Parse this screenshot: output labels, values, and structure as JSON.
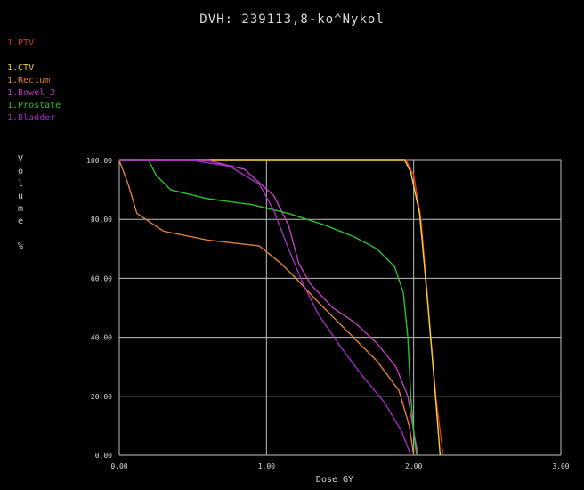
{
  "title": "DVH: 239113,8-ko^Nykol",
  "legend": [
    {
      "label": "1.PTV",
      "color": "#e0302a"
    },
    {
      "label": "",
      "color": "#2060ff"
    },
    {
      "label": "1.CTV",
      "color": "#e8d23a"
    },
    {
      "label": "1.Rectum",
      "color": "#e0803a"
    },
    {
      "label": "1.Bowel_2",
      "color": "#c040c0"
    },
    {
      "label": "1.Prostate",
      "color": "#30c030"
    },
    {
      "label": "1.Bladder",
      "color": "#a030c0"
    }
  ],
  "stats": [
    {
      "label": "",
      "value": ""
    },
    {
      "label": "",
      "value": ""
    },
    {
      "label": "",
      "value": ""
    },
    {
      "label": "",
      "value": ""
    },
    {
      "label": "",
      "value": ""
    },
    {
      "label": "",
      "value": ""
    },
    {
      "label": "",
      "value": ""
    },
    {
      "label": "",
      "value": ""
    }
  ],
  "y_axis_label": "Volume %",
  "chart_data": {
    "type": "line",
    "title": "DVH: 239113,8-ko^Nykol",
    "xlabel": "Dose GY",
    "ylabel": "Volume %",
    "xlim": [
      0,
      3
    ],
    "ylim": [
      0,
      100
    ],
    "x_ticks": [
      "0.00",
      "1.00",
      "2.00",
      "3.00"
    ],
    "y_ticks": [
      "0.00",
      "20.00",
      "40.00",
      "60.00",
      "80.00",
      "100.00"
    ],
    "grid": true,
    "series": [
      {
        "name": "1.PTV",
        "color": "#e0302a",
        "points": [
          [
            0,
            100
          ],
          [
            1.95,
            100
          ],
          [
            2.0,
            95
          ],
          [
            2.05,
            80
          ],
          [
            2.1,
            50
          ],
          [
            2.15,
            20
          ],
          [
            2.2,
            0
          ]
        ]
      },
      {
        "name": "1.CTV",
        "color": "#e8d23a",
        "points": [
          [
            0,
            100
          ],
          [
            1.94,
            100
          ],
          [
            1.98,
            96
          ],
          [
            2.04,
            82
          ],
          [
            2.09,
            55
          ],
          [
            2.14,
            25
          ],
          [
            2.18,
            0
          ]
        ]
      },
      {
        "name": "1.Rectum",
        "color": "#e0803a",
        "points": [
          [
            0,
            100
          ],
          [
            0.06,
            92
          ],
          [
            0.12,
            82
          ],
          [
            0.3,
            76
          ],
          [
            0.6,
            73
          ],
          [
            0.95,
            71
          ],
          [
            1.1,
            65
          ],
          [
            1.2,
            60
          ],
          [
            1.35,
            52
          ],
          [
            1.55,
            42
          ],
          [
            1.75,
            32
          ],
          [
            1.9,
            22
          ],
          [
            1.97,
            10
          ],
          [
            2.0,
            0
          ]
        ]
      },
      {
        "name": "1.Bowel_2",
        "color": "#c040c0",
        "points": [
          [
            0,
            100
          ],
          [
            0.6,
            100
          ],
          [
            0.85,
            97
          ],
          [
            1.05,
            88
          ],
          [
            1.15,
            78
          ],
          [
            1.22,
            65
          ],
          [
            1.3,
            58
          ],
          [
            1.45,
            50
          ],
          [
            1.6,
            45
          ],
          [
            1.75,
            38
          ],
          [
            1.88,
            30
          ],
          [
            1.96,
            20
          ],
          [
            2.0,
            8
          ],
          [
            2.03,
            0
          ]
        ]
      },
      {
        "name": "1.Prostate",
        "color": "#30c030",
        "points": [
          [
            0,
            100
          ],
          [
            0.2,
            100
          ],
          [
            0.25,
            95
          ],
          [
            0.35,
            90
          ],
          [
            0.6,
            87
          ],
          [
            0.9,
            85
          ],
          [
            1.15,
            82
          ],
          [
            1.4,
            78
          ],
          [
            1.6,
            74
          ],
          [
            1.75,
            70
          ],
          [
            1.87,
            64
          ],
          [
            1.93,
            55
          ],
          [
            1.96,
            40
          ],
          [
            1.98,
            20
          ],
          [
            2.0,
            8
          ],
          [
            2.02,
            0
          ]
        ]
      },
      {
        "name": "1.Bladder",
        "color": "#a030c0",
        "points": [
          [
            0,
            100
          ],
          [
            0.5,
            100
          ],
          [
            0.75,
            98
          ],
          [
            0.95,
            92
          ],
          [
            1.05,
            83
          ],
          [
            1.15,
            70
          ],
          [
            1.25,
            58
          ],
          [
            1.35,
            48
          ],
          [
            1.5,
            37
          ],
          [
            1.65,
            27
          ],
          [
            1.8,
            18
          ],
          [
            1.92,
            8
          ],
          [
            1.98,
            0
          ]
        ]
      }
    ]
  }
}
